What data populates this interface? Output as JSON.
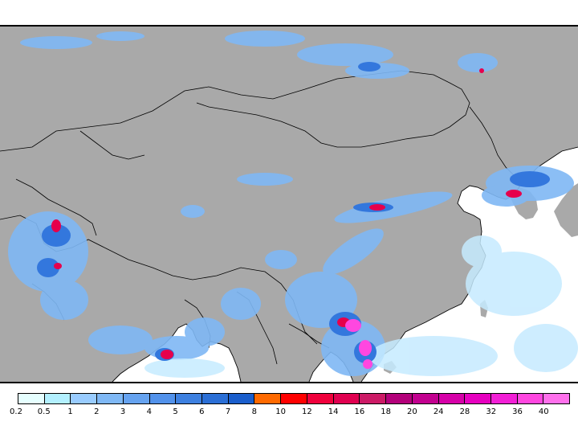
{
  "map": {
    "land_color": "#a9a9a9",
    "ocean_color": "#ffffff",
    "precip_colors": [
      "#e6ffff",
      "#b3f0ff",
      "#99ccff",
      "#7fb8f5",
      "#5c9ff0",
      "#4a8ae6",
      "#3377dd",
      "#1f5fcc",
      "#ff7f00",
      "#ff0000",
      "#e6004c",
      "#cc1a66",
      "#b30080",
      "#cc0099",
      "#e600b3",
      "#ff33cc",
      "#ff66e6"
    ]
  },
  "legend": {
    "labels": [
      "0.2",
      "0.5",
      "1",
      "2",
      "3",
      "4",
      "5",
      "6",
      "7",
      "8",
      "10",
      "12",
      "14",
      "16",
      "18",
      "20",
      "24",
      "28",
      "32",
      "36",
      "40"
    ],
    "colors": [
      "#e6ffff",
      "#b3f0ff",
      "#99ccff",
      "#7fb8f5",
      "#66a3f0",
      "#5292eb",
      "#3d80e0",
      "#2b6fd6",
      "#1a5ecc",
      "#ff6a00",
      "#ff0000",
      "#f0003c",
      "#e00050",
      "#cc1a66",
      "#b3007a",
      "#c2008f",
      "#d600a8",
      "#e600bf",
      "#f21fd6",
      "#ff47e0",
      "#ff70ec"
    ]
  }
}
